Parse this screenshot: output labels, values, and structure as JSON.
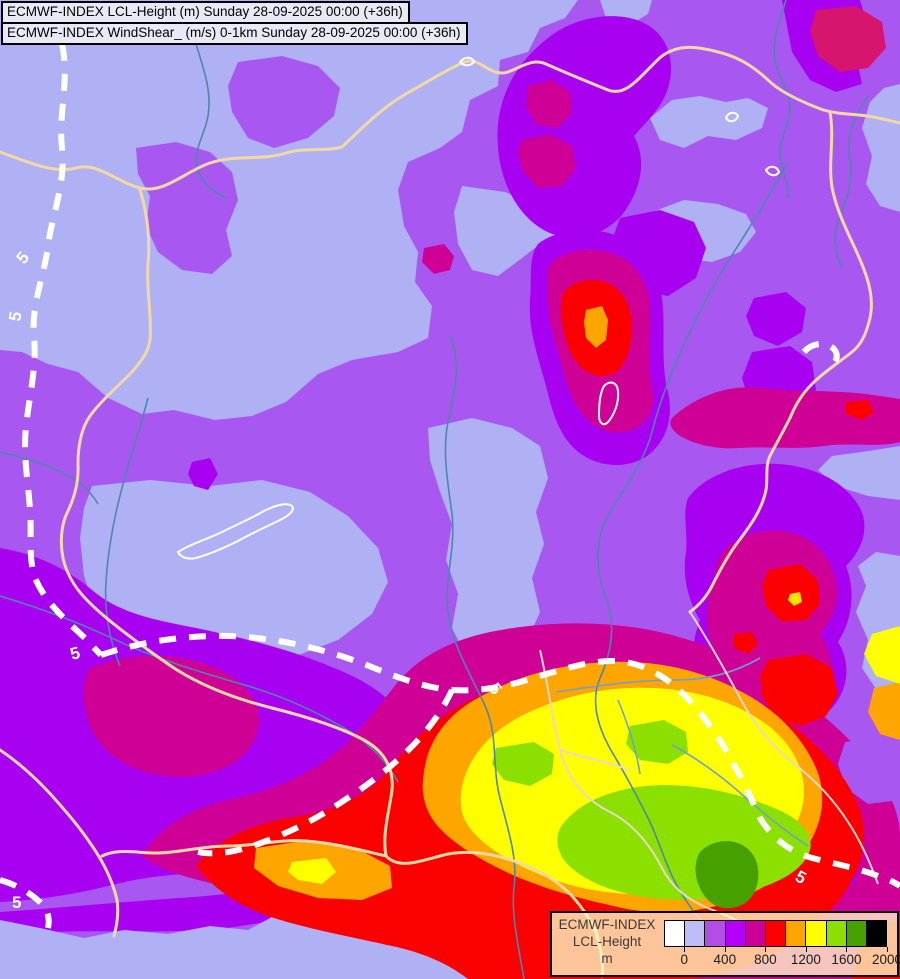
{
  "header": {
    "line1": "ECMWF-INDEX LCL-Height (m) Sunday 28-09-2025 00:00 (+36h)",
    "line2": "ECMWF-INDEX WindShear_ (m/s) 0-1km Sunday 28-09-2025 00:00 (+36h)"
  },
  "legend": {
    "title_line1": "ECMWF-INDEX",
    "title_line2": "LCL-Height",
    "unit": "m",
    "swatches": [
      "#ffffff",
      "#bdbdf6",
      "#b44de6",
      "#b400fa",
      "#cc0099",
      "#fb0000",
      "#ffa500",
      "#ffff00",
      "#8ce000",
      "#46a000",
      "#000000"
    ],
    "tick_labels": [
      "0",
      "400",
      "800",
      "1200",
      "1600",
      "2000"
    ]
  },
  "map": {
    "shear_label": "5",
    "palette": {
      "lavender_0_200": "#b0b0f4",
      "purple_200_400": "#a858f0",
      "violet_400_600": "#a800f0",
      "magenta_600_800": "#ce0095",
      "red_800_1000": "#fa0000",
      "orange_1000_1200": "#ffa500",
      "yellow_1200_1400": "#ffff00",
      "yellowgreen_1400_1600": "#8ce000",
      "green_1600_1800": "#46a000",
      "border_country": "#f1d9a4",
      "border_admin": "#ead6ca",
      "river": "#4e86ae",
      "shear_contour": "#ffffff"
    }
  }
}
